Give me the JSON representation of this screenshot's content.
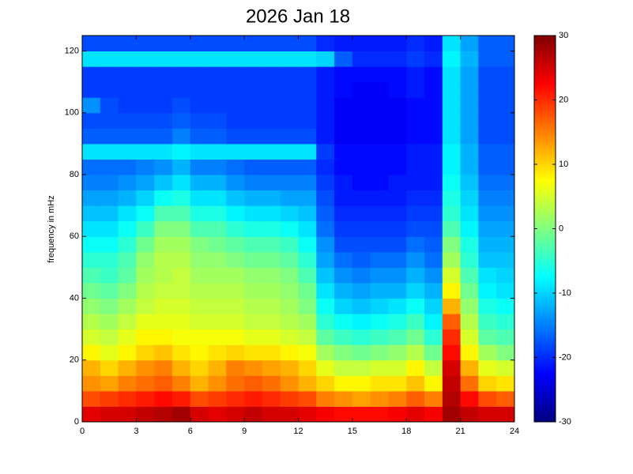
{
  "chart_data": {
    "type": "heatmap",
    "title": "2026 Jan 18",
    "ylabel": "frequency in mHz",
    "xlim": [
      0,
      24
    ],
    "xticks": [
      0,
      3,
      6,
      9,
      12,
      15,
      18,
      21,
      24
    ],
    "ylim": [
      0,
      125
    ],
    "yticks": [
      0,
      20,
      40,
      60,
      80,
      100,
      120
    ],
    "clim": [
      -30,
      30
    ],
    "cticks": [
      -30,
      -20,
      -10,
      0,
      10,
      20,
      30
    ],
    "colormap": "jet",
    "xbins": [
      0,
      1,
      2,
      3,
      4,
      5,
      6,
      7,
      8,
      9,
      10,
      11,
      12,
      13,
      14,
      15,
      16,
      17,
      18,
      19,
      20,
      21,
      22,
      23,
      24
    ],
    "ybins": [
      0,
      5,
      10,
      15,
      20,
      25,
      30,
      35,
      40,
      45,
      50,
      55,
      60,
      65,
      70,
      75,
      80,
      85,
      90,
      95,
      100,
      105,
      110,
      115,
      120,
      125
    ],
    "z": [
      [
        24,
        25,
        25,
        26,
        27,
        28,
        25,
        24,
        25,
        26,
        25,
        25,
        24,
        23,
        22,
        22,
        22,
        23,
        24,
        23,
        28,
        26,
        25,
        25
      ],
      [
        18,
        19,
        20,
        21,
        22,
        21,
        18,
        19,
        20,
        21,
        20,
        19,
        18,
        15,
        14,
        13,
        14,
        15,
        17,
        15,
        27,
        22,
        18,
        17
      ],
      [
        14,
        13,
        15,
        16,
        17,
        15,
        12,
        14,
        16,
        17,
        16,
        14,
        12,
        10,
        8,
        8,
        9,
        9,
        11,
        8,
        26,
        16,
        10,
        9
      ],
      [
        12,
        10,
        12,
        14,
        15,
        12,
        10,
        12,
        15,
        14,
        13,
        12,
        10,
        6,
        4,
        4,
        5,
        5,
        8,
        4,
        25,
        12,
        6,
        5
      ],
      [
        8,
        6,
        8,
        10,
        11,
        9,
        8,
        9,
        10,
        9,
        9,
        8,
        7,
        2,
        0,
        -1,
        0,
        1,
        3,
        -1,
        22,
        8,
        2,
        0
      ],
      [
        5,
        4,
        6,
        8,
        8,
        7,
        7,
        7,
        7,
        6,
        6,
        5,
        4,
        -2,
        -4,
        -5,
        -4,
        -3,
        -1,
        -5,
        20,
        5,
        -2,
        -3
      ],
      [
        3,
        2,
        4,
        6,
        6,
        6,
        5,
        5,
        5,
        4,
        4,
        3,
        2,
        -5,
        -7,
        -8,
        -7,
        -6,
        -4,
        -8,
        17,
        3,
        -4,
        -5
      ],
      [
        1,
        0,
        2,
        4,
        5,
        5,
        4,
        4,
        4,
        3,
        3,
        2,
        0,
        -7,
        -10,
        -11,
        -10,
        -9,
        -7,
        -10,
        12,
        1,
        -6,
        -7
      ],
      [
        -1,
        -2,
        0,
        3,
        4,
        4,
        3,
        3,
        3,
        2,
        2,
        1,
        -1,
        -9,
        -12,
        -13,
        -12,
        -12,
        -10,
        -12,
        8,
        -1,
        -8,
        -9
      ],
      [
        -3,
        -4,
        -2,
        2,
        3,
        4,
        2,
        2,
        2,
        1,
        1,
        0,
        -3,
        -11,
        -14,
        -15,
        -14,
        -14,
        -12,
        -14,
        5,
        -3,
        -9,
        -10
      ],
      [
        -5,
        -5,
        -3,
        1,
        3,
        3,
        1,
        1,
        0,
        -1,
        -1,
        -2,
        -5,
        -13,
        -16,
        -17,
        -16,
        -16,
        -14,
        -16,
        2,
        -5,
        -11,
        -11
      ],
      [
        -7,
        -7,
        -5,
        -1,
        2,
        2,
        0,
        -1,
        -2,
        -3,
        -3,
        -4,
        -7,
        -14,
        -18,
        -18,
        -18,
        -18,
        -16,
        -17,
        0,
        -6,
        -12,
        -12
      ],
      [
        -9,
        -9,
        -7,
        -4,
        0,
        0,
        -3,
        -3,
        -5,
        -6,
        -6,
        -7,
        -9,
        -16,
        -19,
        -19,
        -19,
        -19,
        -18,
        -18,
        -3,
        -8,
        -13,
        -13
      ],
      [
        -11,
        -11,
        -9,
        -7,
        -3,
        -3,
        -6,
        -6,
        -8,
        -9,
        -9,
        -10,
        -11,
        -17,
        -20,
        -20,
        -20,
        -20,
        -19,
        -19,
        -5,
        -9,
        -14,
        -14
      ],
      [
        -13,
        -13,
        -12,
        -10,
        -7,
        -6,
        -9,
        -9,
        -11,
        -12,
        -12,
        -13,
        -13,
        -18,
        -21,
        -21,
        -21,
        -21,
        -20,
        -20,
        -6,
        -10,
        -15,
        -15
      ],
      [
        -15,
        -15,
        -14,
        -13,
        -11,
        -9,
        -12,
        -12,
        -14,
        -15,
        -15,
        -15,
        -15,
        -19,
        -21,
        -22,
        -22,
        -21,
        -21,
        -21,
        -7,
        -11,
        -16,
        -16
      ],
      [
        -16,
        -16,
        -16,
        -15,
        -14,
        -12,
        -15,
        -15,
        -16,
        -17,
        -17,
        -17,
        -17,
        -20,
        -22,
        -22,
        -22,
        -22,
        -21,
        -21,
        -8,
        -12,
        -17,
        -17
      ],
      [
        -9,
        -9,
        -9,
        -9,
        -9,
        -8,
        -9,
        -9,
        -9,
        -9,
        -9,
        -9,
        -9,
        -19,
        -22,
        -22,
        -22,
        -22,
        -21,
        -21,
        -8,
        -12,
        -17,
        -17
      ],
      [
        -17,
        -17,
        -17,
        -17,
        -17,
        -15,
        -17,
        -17,
        -18,
        -18,
        -18,
        -18,
        -18,
        -21,
        -23,
        -23,
        -23,
        -23,
        -22,
        -22,
        -9,
        -13,
        -18,
        -18
      ],
      [
        -18,
        -18,
        -18,
        -18,
        -18,
        -17,
        -18,
        -18,
        -19,
        -19,
        -19,
        -19,
        -19,
        -21,
        -23,
        -23,
        -23,
        -23,
        -22,
        -22,
        -9,
        -13,
        -18,
        -18
      ],
      [
        -14,
        -18,
        -19,
        -19,
        -19,
        -18,
        -19,
        -19,
        -19,
        -19,
        -19,
        -19,
        -19,
        -21,
        -23,
        -23,
        -23,
        -23,
        -22,
        -22,
        -9,
        -13,
        -18,
        -18
      ],
      [
        -19,
        -19,
        -19,
        -19,
        -19,
        -19,
        -19,
        -19,
        -19,
        -19,
        -19,
        -19,
        -19,
        -21,
        -22,
        -23,
        -23,
        -22,
        -21,
        -22,
        -9,
        -13,
        -18,
        -18
      ],
      [
        -19,
        -19,
        -19,
        -19,
        -19,
        -19,
        -19,
        -19,
        -19,
        -19,
        -19,
        -19,
        -19,
        -21,
        -22,
        -22,
        -22,
        -22,
        -21,
        -22,
        -9,
        -13,
        -18,
        -18
      ],
      [
        -9,
        -9,
        -9,
        -9,
        -9,
        -9,
        -9,
        -9,
        -9,
        -9,
        -9,
        -9,
        -9,
        -10,
        -17,
        -20,
        -20,
        -20,
        -19,
        -20,
        -8,
        -12,
        -17,
        -17
      ],
      [
        -18,
        -18,
        -18,
        -18,
        -18,
        -18,
        -18,
        -18,
        -18,
        -18,
        -18,
        -18,
        -18,
        -20,
        -21,
        -21,
        -21,
        -21,
        -20,
        -21,
        -9,
        -13,
        -17,
        -17
      ]
    ]
  }
}
